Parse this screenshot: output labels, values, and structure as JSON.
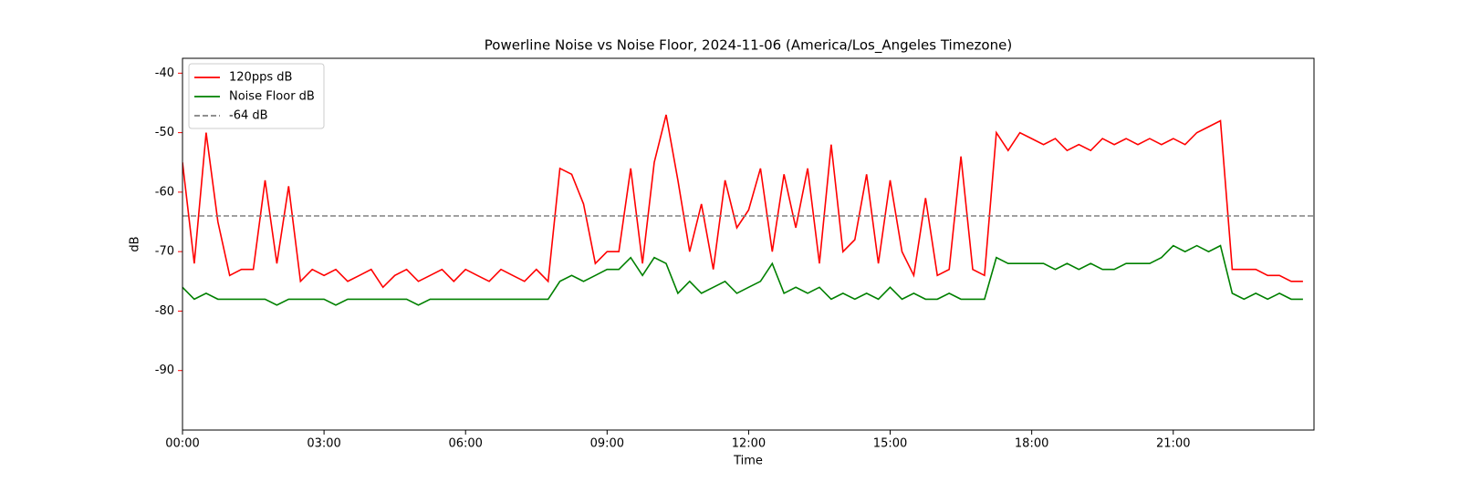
{
  "chart_data": {
    "type": "line",
    "title": "Powerline Noise vs Noise Floor, 2024-11-06 (America/Los_Angeles Timezone)",
    "x_label": "Time",
    "y_label": "dB",
    "y_label_color": "#ff0000",
    "legend": "upper left",
    "x": [
      "00:00",
      "00:15",
      "00:30",
      "00:45",
      "01:00",
      "01:15",
      "01:30",
      "01:45",
      "02:00",
      "02:15",
      "02:30",
      "02:45",
      "03:00",
      "03:15",
      "03:30",
      "03:45",
      "04:00",
      "04:15",
      "04:30",
      "04:45",
      "05:00",
      "05:15",
      "05:30",
      "05:45",
      "06:00",
      "06:15",
      "06:30",
      "06:45",
      "07:00",
      "07:15",
      "07:30",
      "07:45",
      "08:00",
      "08:15",
      "08:30",
      "08:45",
      "09:00",
      "09:15",
      "09:30",
      "09:45",
      "10:00",
      "10:15",
      "10:30",
      "10:45",
      "11:00",
      "11:15",
      "11:30",
      "11:45",
      "12:00",
      "12:15",
      "12:30",
      "12:45",
      "13:00",
      "13:15",
      "13:30",
      "13:45",
      "14:00",
      "14:15",
      "14:30",
      "14:45",
      "15:00",
      "15:15",
      "15:30",
      "15:45",
      "16:00",
      "16:15",
      "16:30",
      "16:45",
      "17:00",
      "17:15",
      "17:30",
      "17:45",
      "18:00",
      "18:15",
      "18:30",
      "18:45",
      "19:00",
      "19:15",
      "19:30",
      "19:45",
      "20:00",
      "20:15",
      "20:30",
      "20:45",
      "21:00",
      "21:15",
      "21:30",
      "21:45",
      "22:00",
      "22:15",
      "22:30",
      "22:45",
      "23:00",
      "23:15",
      "23:30",
      "23:45"
    ],
    "series": [
      {
        "name": "120pps dB",
        "color": "#ff0000",
        "values": [
          -55,
          -72,
          -50,
          -65,
          -74,
          -73,
          -73,
          -58,
          -72,
          -59,
          -75,
          -73,
          -74,
          -73,
          -75,
          -74,
          -73,
          -76,
          -74,
          -73,
          -75,
          -74,
          -73,
          -75,
          -73,
          -74,
          -75,
          -73,
          -74,
          -75,
          -73,
          -75,
          -56,
          -57,
          -62,
          -72,
          -70,
          -70,
          -56,
          -72,
          -55,
          -47,
          -58,
          -70,
          -62,
          -73,
          -58,
          -66,
          -63,
          -56,
          -70,
          -57,
          -66,
          -56,
          -72,
          -52,
          -70,
          -68,
          -57,
          -72,
          -58,
          -70,
          -74,
          -61,
          -74,
          -73,
          -54,
          -73,
          -74,
          -50,
          -53,
          -50,
          -51,
          -52,
          -51,
          -53,
          -52,
          -53,
          -51,
          -52,
          -51,
          -52,
          -51,
          -52,
          -51,
          -52,
          -50,
          -49,
          -48,
          -73,
          -73,
          -73,
          -74,
          -74,
          -75,
          -75
        ]
      },
      {
        "name": "Noise Floor dB",
        "color": "#008000",
        "values": [
          -76,
          -78,
          -77,
          -78,
          -78,
          -78,
          -78,
          -78,
          -79,
          -78,
          -78,
          -78,
          -78,
          -79,
          -78,
          -78,
          -78,
          -78,
          -78,
          -78,
          -79,
          -78,
          -78,
          -78,
          -78,
          -78,
          -78,
          -78,
          -78,
          -78,
          -78,
          -78,
          -75,
          -74,
          -75,
          -74,
          -73,
          -73,
          -71,
          -74,
          -71,
          -72,
          -77,
          -75,
          -77,
          -76,
          -75,
          -77,
          -76,
          -75,
          -72,
          -77,
          -76,
          -77,
          -76,
          -78,
          -77,
          -78,
          -77,
          -78,
          -76,
          -78,
          -77,
          -78,
          -78,
          -77,
          -78,
          -78,
          -78,
          -71,
          -72,
          -72,
          -72,
          -72,
          -73,
          -72,
          -73,
          -72,
          -73,
          -73,
          -72,
          -72,
          -72,
          -71,
          -69,
          -70,
          -69,
          -70,
          -69,
          -77,
          -78,
          -77,
          -78,
          -77,
          -78,
          -78
        ]
      }
    ],
    "hlines": [
      {
        "name": "-64 dB",
        "value": -64,
        "color": "#808080"
      }
    ],
    "xlim": [
      "00:00",
      "23:59"
    ],
    "xticks": [
      "00:00",
      "03:00",
      "06:00",
      "09:00",
      "12:00",
      "15:00",
      "18:00",
      "21:00"
    ],
    "ylim": [
      -100,
      -37.5
    ],
    "yticks": [
      -90,
      -80,
      -70,
      -60,
      -50,
      -40
    ],
    "ytick_color": "#ff0000"
  }
}
